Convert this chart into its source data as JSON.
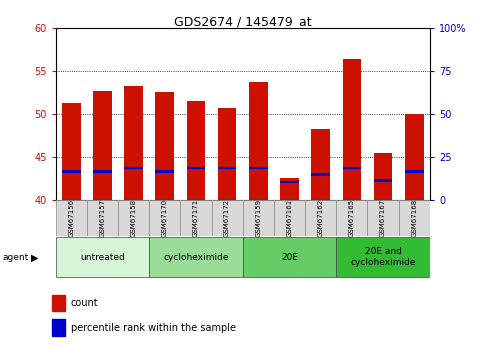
{
  "title": "GDS2674 / 145479_at",
  "samples": [
    "GSM67156",
    "GSM67157",
    "GSM67158",
    "GSM67170",
    "GSM67171",
    "GSM67172",
    "GSM67159",
    "GSM67161",
    "GSM67162",
    "GSM67165",
    "GSM67167",
    "GSM67168"
  ],
  "count_values": [
    51.2,
    52.7,
    53.2,
    52.5,
    51.5,
    50.7,
    53.7,
    42.6,
    48.2,
    56.4,
    45.5,
    50.0
  ],
  "percentile_values": [
    43.3,
    43.3,
    43.7,
    43.3,
    43.7,
    43.7,
    43.7,
    42.1,
    43.0,
    43.7,
    42.3,
    43.3
  ],
  "bar_bottom": 40,
  "ylim_left": [
    40,
    60
  ],
  "ylim_right": [
    0,
    100
  ],
  "yticks_left": [
    40,
    45,
    50,
    55,
    60
  ],
  "yticks_right": [
    0,
    25,
    50,
    75,
    100
  ],
  "ytick_labels_right": [
    "0",
    "25",
    "50",
    "75",
    "100%"
  ],
  "bar_color": "#cc1100",
  "percentile_color": "#0000cc",
  "bar_width": 0.6,
  "groups": [
    {
      "label": "untreated",
      "start": 0,
      "end": 3,
      "color": "#d6f5d6"
    },
    {
      "label": "cycloheximide",
      "start": 3,
      "end": 6,
      "color": "#99dd99"
    },
    {
      "label": "20E",
      "start": 6,
      "end": 9,
      "color": "#66cc66"
    },
    {
      "label": "20E and\ncycloheximide",
      "start": 9,
      "end": 12,
      "color": "#33bb33"
    }
  ],
  "grid_yticks": [
    45,
    50,
    55
  ],
  "title_fontsize": 9,
  "tick_fontsize": 7,
  "sample_fontsize": 5,
  "group_fontsize": 6.5,
  "legend_fontsize": 7,
  "agent_label": "agent",
  "tick_label_color_left": "#cc1100",
  "tick_label_color_right": "#0000cc",
  "sample_box_color": "#d8d8d8"
}
